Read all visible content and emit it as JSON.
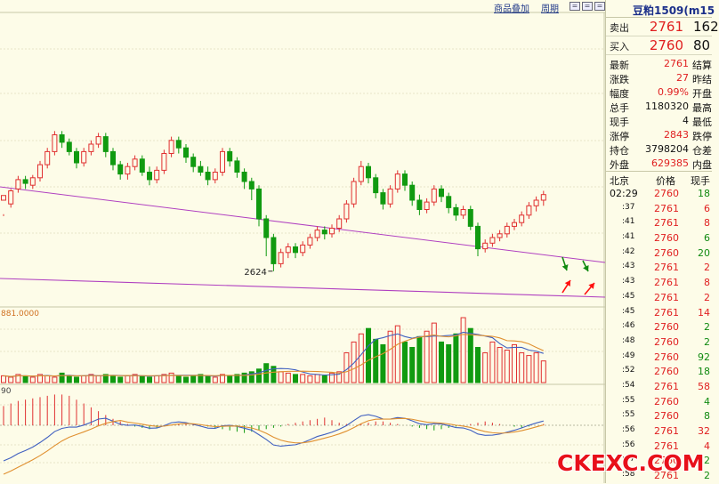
{
  "toolbar": {
    "overlay_label": "商品叠加",
    "period_label": "周期"
  },
  "chart_labels": {
    "low_label": "2624",
    "vol_axis_label": "881.0000",
    "macd_axis_label": "90"
  },
  "colors": {
    "up": "#e03030",
    "down": "#109a10",
    "trendline": "#b040c0",
    "ma_a": "#e09030",
    "ma_b": "#4060c0",
    "annot_up": "#ff1010",
    "annot_down": "#108a10"
  },
  "quote": {
    "title": "豆粕1509(m15",
    "sell": {
      "label": "卖出",
      "price": "2761",
      "vol": "162"
    },
    "buy": {
      "label": "买入",
      "price": "2760",
      "vol": "80"
    },
    "stats": [
      {
        "label": "最新",
        "value": "2761",
        "label2": "结算",
        "red": true
      },
      {
        "label": "涨跌",
        "value": "27",
        "label2": "昨结",
        "red": true
      },
      {
        "label": "幅度",
        "value": "0.99%",
        "label2": "开盘",
        "red": true
      },
      {
        "label": "总手",
        "value": "1180320",
        "label2": "最高",
        "red": false
      },
      {
        "label": "现手",
        "value": "4",
        "label2": "最低",
        "red": false
      },
      {
        "label": "涨停",
        "value": "2843",
        "label2": "跌停",
        "red": true
      },
      {
        "label": "持仓",
        "value": "3798204",
        "label2": "仓差",
        "red": false
      },
      {
        "label": "外盘",
        "value": "629385",
        "label2": "内盘",
        "red": true
      }
    ],
    "ticks_header": {
      "c1": "北京",
      "c2": "价格",
      "c3": "现手"
    },
    "ticks": [
      {
        "time": "02:29",
        "price": "2760",
        "vol": "18",
        "dir": "dn"
      },
      {
        "time": ":37",
        "price": "2761",
        "vol": "6",
        "dir": "up"
      },
      {
        "time": ":41",
        "price": "2761",
        "vol": "8",
        "dir": "up"
      },
      {
        "time": ":41",
        "price": "2760",
        "vol": "6",
        "dir": "dn"
      },
      {
        "time": ":42",
        "price": "2760",
        "vol": "20",
        "dir": "dn"
      },
      {
        "time": ":43",
        "price": "2761",
        "vol": "2",
        "dir": "up"
      },
      {
        "time": ":43",
        "price": "2761",
        "vol": "8",
        "dir": "up"
      },
      {
        "time": ":45",
        "price": "2761",
        "vol": "2",
        "dir": "up"
      },
      {
        "time": ":45",
        "price": "2761",
        "vol": "14",
        "dir": "up"
      },
      {
        "time": ":46",
        "price": "2760",
        "vol": "2",
        "dir": "dn"
      },
      {
        "time": ":48",
        "price": "2760",
        "vol": "2",
        "dir": "dn"
      },
      {
        "time": ":49",
        "price": "2760",
        "vol": "92",
        "dir": "dn"
      },
      {
        "time": ":52",
        "price": "2760",
        "vol": "18",
        "dir": "dn"
      },
      {
        "time": ":54",
        "price": "2761",
        "vol": "58",
        "dir": "up"
      },
      {
        "time": ":55",
        "price": "2760",
        "vol": "4",
        "dir": "dn"
      },
      {
        "time": ":55",
        "price": "2760",
        "vol": "8",
        "dir": "dn"
      },
      {
        "time": ":56",
        "price": "2761",
        "vol": "32",
        "dir": "up"
      },
      {
        "time": ":56",
        "price": "2761",
        "vol": "4",
        "dir": "up"
      },
      {
        "time": ":57",
        "price": "2760",
        "vol": "2",
        "dir": "dn"
      },
      {
        "time": ":58",
        "price": "2761",
        "vol": "2",
        "dir": "dn"
      }
    ]
  },
  "watermark": "CKEXC.COM",
  "chart_data": [
    {
      "type": "candlestick",
      "xlabel": "",
      "ylabel": "",
      "low_annotation": 2624,
      "trendlines": [
        {
          "name": "upper",
          "from_index": 0,
          "to_index": 74
        },
        {
          "name": "lower",
          "from_index": 0,
          "to_index": 74
        }
      ],
      "candles": [
        [
          2700,
          2705,
          2685,
          2683
        ],
        [
          2696,
          2710,
          2712,
          2692
        ],
        [
          2712,
          2722,
          2726,
          2708
        ],
        [
          2722,
          2718,
          2726,
          2712
        ],
        [
          2716,
          2724,
          2727,
          2712
        ],
        [
          2724,
          2738,
          2742,
          2720
        ],
        [
          2738,
          2752,
          2756,
          2734
        ],
        [
          2752,
          2770,
          2774,
          2748
        ],
        [
          2770,
          2762,
          2774,
          2756
        ],
        [
          2762,
          2752,
          2766,
          2748
        ],
        [
          2752,
          2740,
          2756,
          2734
        ],
        [
          2740,
          2752,
          2756,
          2736
        ],
        [
          2752,
          2760,
          2764,
          2748
        ],
        [
          2760,
          2768,
          2772,
          2756
        ],
        [
          2768,
          2752,
          2772,
          2746
        ],
        [
          2752,
          2738,
          2756,
          2732
        ],
        [
          2738,
          2728,
          2742,
          2722
        ],
        [
          2728,
          2736,
          2740,
          2722
        ],
        [
          2736,
          2744,
          2748,
          2732
        ],
        [
          2744,
          2730,
          2748,
          2726
        ],
        [
          2730,
          2722,
          2736,
          2716
        ],
        [
          2722,
          2732,
          2736,
          2718
        ],
        [
          2732,
          2750,
          2754,
          2728
        ],
        [
          2750,
          2764,
          2768,
          2746
        ],
        [
          2764,
          2756,
          2768,
          2750
        ],
        [
          2756,
          2746,
          2760,
          2740
        ],
        [
          2746,
          2736,
          2750,
          2730
        ],
        [
          2736,
          2730,
          2742,
          2726
        ],
        [
          2730,
          2722,
          2736,
          2716
        ],
        [
          2722,
          2730,
          2734,
          2718
        ],
        [
          2730,
          2752,
          2756,
          2726
        ],
        [
          2752,
          2742,
          2756,
          2736
        ],
        [
          2742,
          2730,
          2746,
          2724
        ],
        [
          2730,
          2720,
          2734,
          2712
        ],
        [
          2720,
          2712,
          2724,
          2700
        ],
        [
          2712,
          2680,
          2716,
          2672
        ],
        [
          2680,
          2660,
          2684,
          2640
        ],
        [
          2660,
          2632,
          2664,
          2624
        ],
        [
          2632,
          2644,
          2648,
          2628
        ],
        [
          2644,
          2650,
          2654,
          2638
        ],
        [
          2650,
          2644,
          2654,
          2638
        ],
        [
          2644,
          2652,
          2656,
          2640
        ],
        [
          2652,
          2660,
          2664,
          2648
        ],
        [
          2660,
          2668,
          2672,
          2656
        ],
        [
          2668,
          2664,
          2672,
          2658
        ],
        [
          2664,
          2670,
          2674,
          2660
        ],
        [
          2670,
          2680,
          2684,
          2666
        ],
        [
          2680,
          2696,
          2700,
          2676
        ],
        [
          2696,
          2720,
          2724,
          2692
        ],
        [
          2720,
          2736,
          2742,
          2716
        ],
        [
          2736,
          2724,
          2740,
          2718
        ],
        [
          2724,
          2708,
          2728,
          2702
        ],
        [
          2708,
          2696,
          2712,
          2690
        ],
        [
          2696,
          2712,
          2716,
          2692
        ],
        [
          2712,
          2728,
          2732,
          2708
        ],
        [
          2728,
          2716,
          2732,
          2710
        ],
        [
          2716,
          2700,
          2720,
          2694
        ],
        [
          2700,
          2690,
          2706,
          2684
        ],
        [
          2690,
          2698,
          2702,
          2686
        ],
        [
          2698,
          2712,
          2716,
          2694
        ],
        [
          2712,
          2704,
          2716,
          2698
        ],
        [
          2704,
          2692,
          2708,
          2686
        ],
        [
          2692,
          2684,
          2696,
          2678
        ],
        [
          2684,
          2690,
          2694,
          2680
        ],
        [
          2690,
          2672,
          2694,
          2668
        ],
        [
          2672,
          2648,
          2676,
          2640
        ],
        [
          2648,
          2654,
          2658,
          2644
        ],
        [
          2654,
          2660,
          2664,
          2650
        ],
        [
          2660,
          2664,
          2668,
          2656
        ],
        [
          2664,
          2672,
          2676,
          2660
        ],
        [
          2672,
          2676,
          2680,
          2668
        ],
        [
          2676,
          2684,
          2688,
          2672
        ],
        [
          2684,
          2694,
          2698,
          2680
        ],
        [
          2694,
          2700,
          2704,
          2688
        ],
        [
          2700,
          2706,
          2710,
          2694
        ]
      ]
    },
    {
      "type": "bar",
      "name": "volume",
      "values": [
        5,
        4,
        6,
        5,
        4,
        6,
        5,
        4,
        7,
        5,
        4,
        5,
        6,
        5,
        6,
        5,
        4,
        5,
        6,
        5,
        4,
        5,
        6,
        7,
        5,
        4,
        5,
        6,
        5,
        4,
        6,
        5,
        6,
        7,
        8,
        10,
        14,
        12,
        8,
        7,
        6,
        6,
        5,
        6,
        5,
        7,
        8,
        22,
        30,
        36,
        40,
        32,
        28,
        38,
        42,
        30,
        26,
        34,
        38,
        44,
        30,
        28,
        36,
        48,
        40,
        26,
        22,
        30,
        26,
        24,
        28,
        22,
        20,
        22,
        16
      ]
    },
    {
      "type": "bar",
      "name": "MACD",
      "values": [
        30,
        34,
        38,
        40,
        42,
        44,
        46,
        48,
        48,
        46,
        40,
        34,
        28,
        22,
        16,
        10,
        6,
        2,
        -2,
        -4,
        -6,
        -4,
        -2,
        0,
        2,
        4,
        2,
        0,
        -2,
        -4,
        -6,
        -8,
        -10,
        -12,
        -10,
        -8,
        -6,
        -4,
        -2,
        2,
        4,
        6,
        8,
        10,
        12,
        8,
        4,
        2,
        0,
        2,
        4,
        6,
        6,
        4,
        2,
        0,
        -2,
        -4,
        -6,
        -8,
        -6,
        -4,
        -2,
        0,
        2,
        4,
        6,
        4,
        2,
        0,
        -2,
        -4,
        -2,
        0,
        2
      ]
    }
  ]
}
